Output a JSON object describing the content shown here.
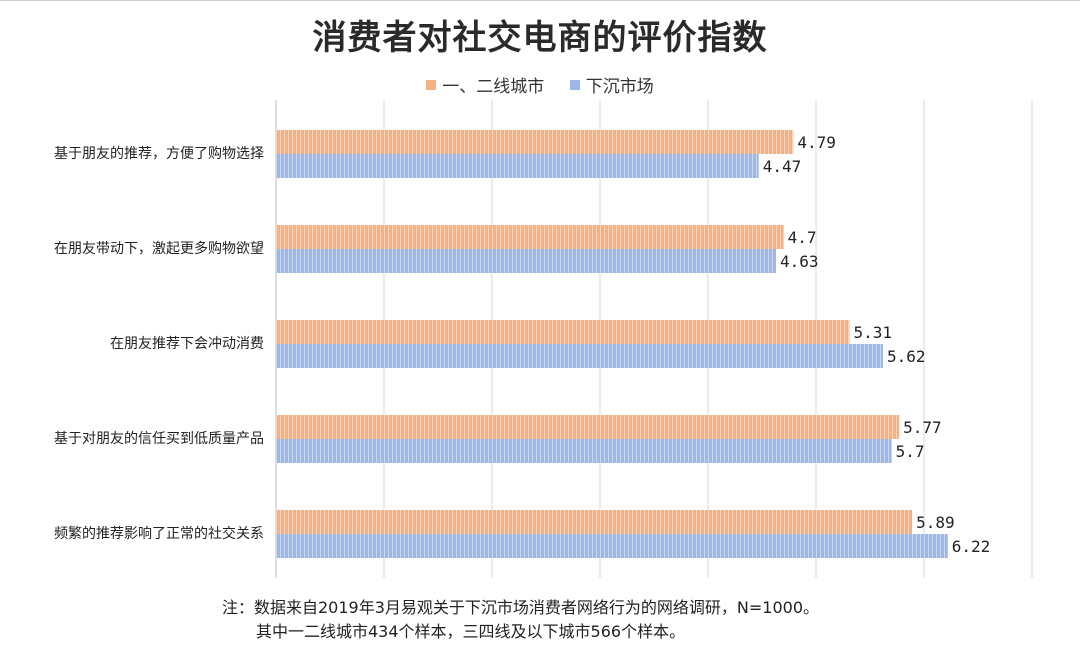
{
  "chart_data": {
    "type": "bar",
    "orientation": "horizontal",
    "title": "消费者对社交电商的评价指数",
    "categories": [
      "基于朋友的推荐，方便了购物选择",
      "在朋友带动下，激起更多购物欲望",
      "在朋友推荐下会冲动消费",
      "基于对朋友的信任买到低质量产品",
      "频繁的推荐影响了正常的社交关系"
    ],
    "series": [
      {
        "name": "一、二线城市",
        "color": "#f4b183",
        "values": [
          4.79,
          4.7,
          5.31,
          5.77,
          5.89
        ],
        "labels": [
          "4.79",
          "4.7",
          "5.31",
          "5.77",
          "5.89"
        ]
      },
      {
        "name": "下沉市场",
        "color": "#9db7e6",
        "values": [
          4.47,
          4.63,
          5.62,
          5.7,
          6.22
        ],
        "labels": [
          "4.47",
          "4.63",
          "5.62",
          "5.7",
          "6.22"
        ]
      }
    ],
    "xlim": [
      0,
      7
    ],
    "grid": true,
    "legend_position": "top"
  },
  "footnote": {
    "line1": "注：数据来自2019年3月易观关于下沉市场消费者网络行为的网络调研，N=1000。",
    "line2": "其中一二线城市434个样本，三四线及以下城市566个样本。"
  }
}
